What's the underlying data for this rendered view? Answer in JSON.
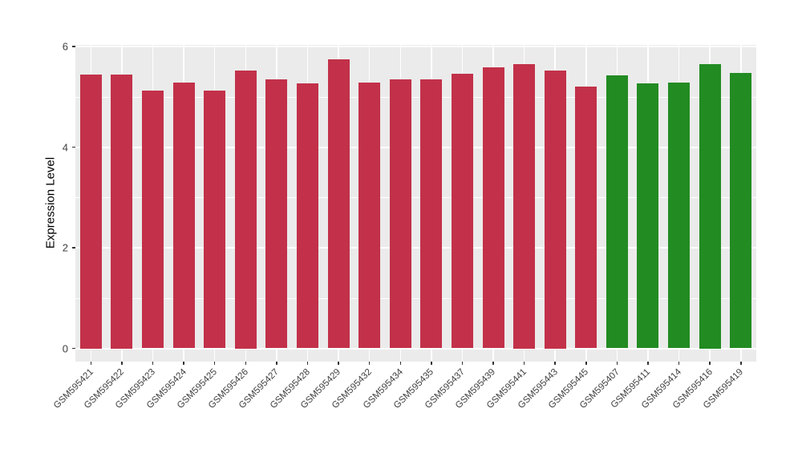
{
  "chart_data": {
    "type": "bar",
    "title": "",
    "xlabel": "",
    "ylabel": "Expression Level",
    "categories": [
      "GSM595421",
      "GSM595422",
      "GSM595423",
      "GSM595424",
      "GSM595425",
      "GSM595426",
      "GSM595427",
      "GSM595428",
      "GSM595429",
      "GSM595432",
      "GSM595434",
      "GSM595435",
      "GSM595437",
      "GSM595439",
      "GSM595441",
      "GSM595443",
      "GSM595445",
      "GSM595407",
      "GSM595411",
      "GSM595414",
      "GSM595416",
      "GSM595419"
    ],
    "values": [
      5.45,
      5.45,
      5.12,
      5.28,
      5.13,
      5.53,
      5.35,
      5.26,
      5.75,
      5.29,
      5.35,
      5.34,
      5.46,
      5.59,
      5.65,
      5.53,
      5.2,
      5.43,
      5.26,
      5.29,
      5.65,
      5.48
    ],
    "bar_colors": [
      "#C23149",
      "#C23149",
      "#C23149",
      "#C23149",
      "#C23149",
      "#C23149",
      "#C23149",
      "#C23149",
      "#C23149",
      "#C23149",
      "#C23149",
      "#C23149",
      "#C23149",
      "#C23149",
      "#C23149",
      "#C23149",
      "#C23149",
      "#228B22",
      "#228B22",
      "#228B22",
      "#228B22",
      "#228B22"
    ],
    "groups": [
      "red",
      "red",
      "red",
      "red",
      "red",
      "red",
      "red",
      "red",
      "red",
      "red",
      "red",
      "red",
      "red",
      "red",
      "red",
      "red",
      "red",
      "green",
      "green",
      "green",
      "green",
      "green"
    ],
    "y_major": [
      0,
      2,
      4,
      6
    ],
    "y_tick_labels": [
      "0",
      "2",
      "4",
      "6"
    ],
    "y_minor": [
      1,
      3,
      5
    ],
    "ylim": [
      0,
      6.03
    ],
    "grid": true,
    "legend": "none",
    "colors": {
      "panel": "#EBEBEB",
      "grid": "#FFFFFF",
      "tick_mark": "#333333",
      "tick_text": "#404040",
      "axis_title": "#000000",
      "red_group": "#C23149",
      "green_group": "#228B22"
    }
  }
}
